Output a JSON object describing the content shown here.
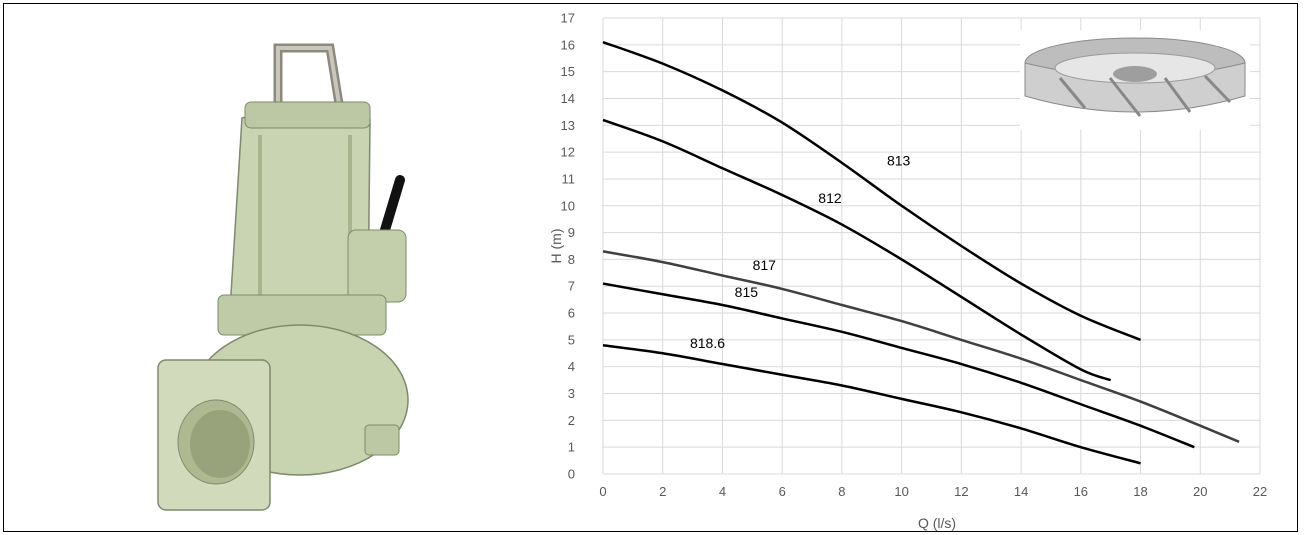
{
  "chart_data": {
    "type": "line",
    "xlabel": "Q (l/s)",
    "ylabel": "H (m)",
    "xlim": [
      0,
      22
    ],
    "ylim": [
      0,
      17
    ],
    "x_ticks": [
      0,
      2,
      4,
      6,
      8,
      10,
      12,
      14,
      16,
      18,
      20,
      22
    ],
    "y_ticks": [
      0,
      1,
      2,
      3,
      4,
      5,
      6,
      7,
      8,
      9,
      10,
      11,
      12,
      13,
      14,
      15,
      16,
      17
    ],
    "grid": true,
    "series": [
      {
        "name": "813",
        "color": "#000000",
        "label_at": [
          9.9,
          11.5
        ],
        "points": [
          [
            0,
            16.1
          ],
          [
            2,
            15.3
          ],
          [
            4,
            14.3
          ],
          [
            6,
            13.1
          ],
          [
            8,
            11.6
          ],
          [
            10,
            10.0
          ],
          [
            12,
            8.5
          ],
          [
            14,
            7.1
          ],
          [
            16,
            5.9
          ],
          [
            18,
            5.0
          ]
        ]
      },
      {
        "name": "812",
        "color": "#000000",
        "label_at": [
          7.6,
          10.1
        ],
        "points": [
          [
            0,
            13.2
          ],
          [
            2,
            12.4
          ],
          [
            4,
            11.4
          ],
          [
            6,
            10.4
          ],
          [
            8,
            9.3
          ],
          [
            10,
            8.0
          ],
          [
            12,
            6.6
          ],
          [
            14,
            5.2
          ],
          [
            16,
            3.9
          ],
          [
            17,
            3.5
          ]
        ]
      },
      {
        "name": "817",
        "color": "#404040",
        "label_at": [
          5.4,
          7.6
        ],
        "points": [
          [
            0,
            8.3
          ],
          [
            2,
            7.9
          ],
          [
            4,
            7.4
          ],
          [
            6,
            6.9
          ],
          [
            8,
            6.3
          ],
          [
            10,
            5.7
          ],
          [
            12,
            5.0
          ],
          [
            14,
            4.3
          ],
          [
            16,
            3.5
          ],
          [
            18,
            2.7
          ],
          [
            20,
            1.8
          ],
          [
            21.3,
            1.2
          ]
        ]
      },
      {
        "name": "815",
        "color": "#000000",
        "label_at": [
          4.8,
          6.6
        ],
        "points": [
          [
            0,
            7.1
          ],
          [
            2,
            6.7
          ],
          [
            4,
            6.3
          ],
          [
            6,
            5.8
          ],
          [
            8,
            5.3
          ],
          [
            10,
            4.7
          ],
          [
            12,
            4.1
          ],
          [
            14,
            3.4
          ],
          [
            16,
            2.6
          ],
          [
            18,
            1.8
          ],
          [
            19.8,
            1.0
          ]
        ]
      },
      {
        "name": "818.6",
        "color": "#000000",
        "label_at": [
          3.5,
          4.7
        ],
        "points": [
          [
            0,
            4.8
          ],
          [
            2,
            4.5
          ],
          [
            4,
            4.1
          ],
          [
            6,
            3.7
          ],
          [
            8,
            3.3
          ],
          [
            10,
            2.8
          ],
          [
            12,
            2.3
          ],
          [
            14,
            1.7
          ],
          [
            16,
            1.0
          ],
          [
            18,
            0.4
          ]
        ]
      }
    ]
  }
}
